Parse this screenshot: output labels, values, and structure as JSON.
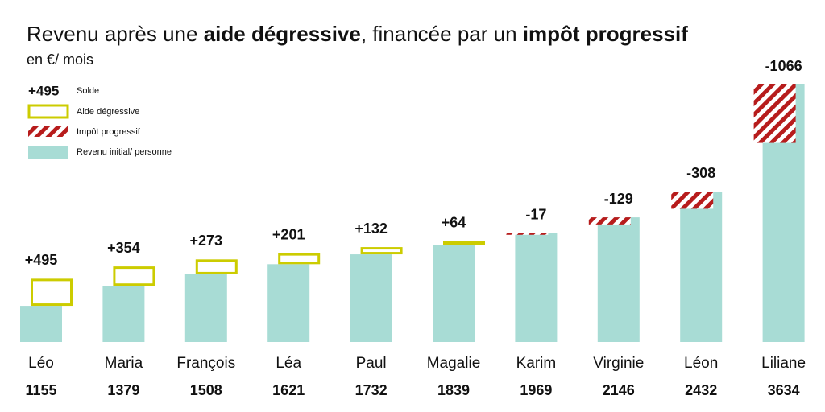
{
  "chart_data": {
    "type": "bar",
    "title_parts": [
      "Revenu après une ",
      "aide dégressive",
      ", financée par un ",
      "impôt progressif"
    ],
    "title_bold": [
      false,
      true,
      false,
      true
    ],
    "subtitle": "en €/ mois",
    "categories": [
      "Léo",
      "Maria",
      "François",
      "Léa",
      "Paul",
      "Magalie",
      "Karim",
      "Virginie",
      "Léon",
      "Liliane"
    ],
    "ylim": [
      0,
      4700
    ],
    "series": [
      {
        "name": "Revenu initial/ personne",
        "color": "#a8dcd5",
        "values": [
          660,
          1025,
          1235,
          1420,
          1600,
          1775,
          1986,
          2275,
          2740,
          4700
        ]
      },
      {
        "name": "Solde",
        "color": "#cccc00",
        "negative_color": "#b71c1c",
        "values": [
          495,
          354,
          273,
          201,
          132,
          64,
          -17,
          -129,
          -308,
          -1066
        ],
        "value_labels": [
          "+495",
          "+354",
          "+273",
          "+201",
          "+132",
          "+64",
          "-17",
          "-129",
          "-308",
          "-1066"
        ]
      }
    ],
    "legend_items": [
      "Aide dégressive",
      "Impôt progressif"
    ],
    "final": {
      "values": [
        1155,
        1379,
        1508,
        1621,
        1732,
        1839,
        1969,
        2146,
        2432,
        3634
      ],
      "colors": [
        "#c8c800",
        "#c8c800",
        "#c8c800",
        "#c8c800",
        "#c8c800",
        "#aaaaaa",
        "#aaaaaa",
        "#b71c1c",
        "#b71c1c",
        "#b71c1c"
      ]
    }
  }
}
